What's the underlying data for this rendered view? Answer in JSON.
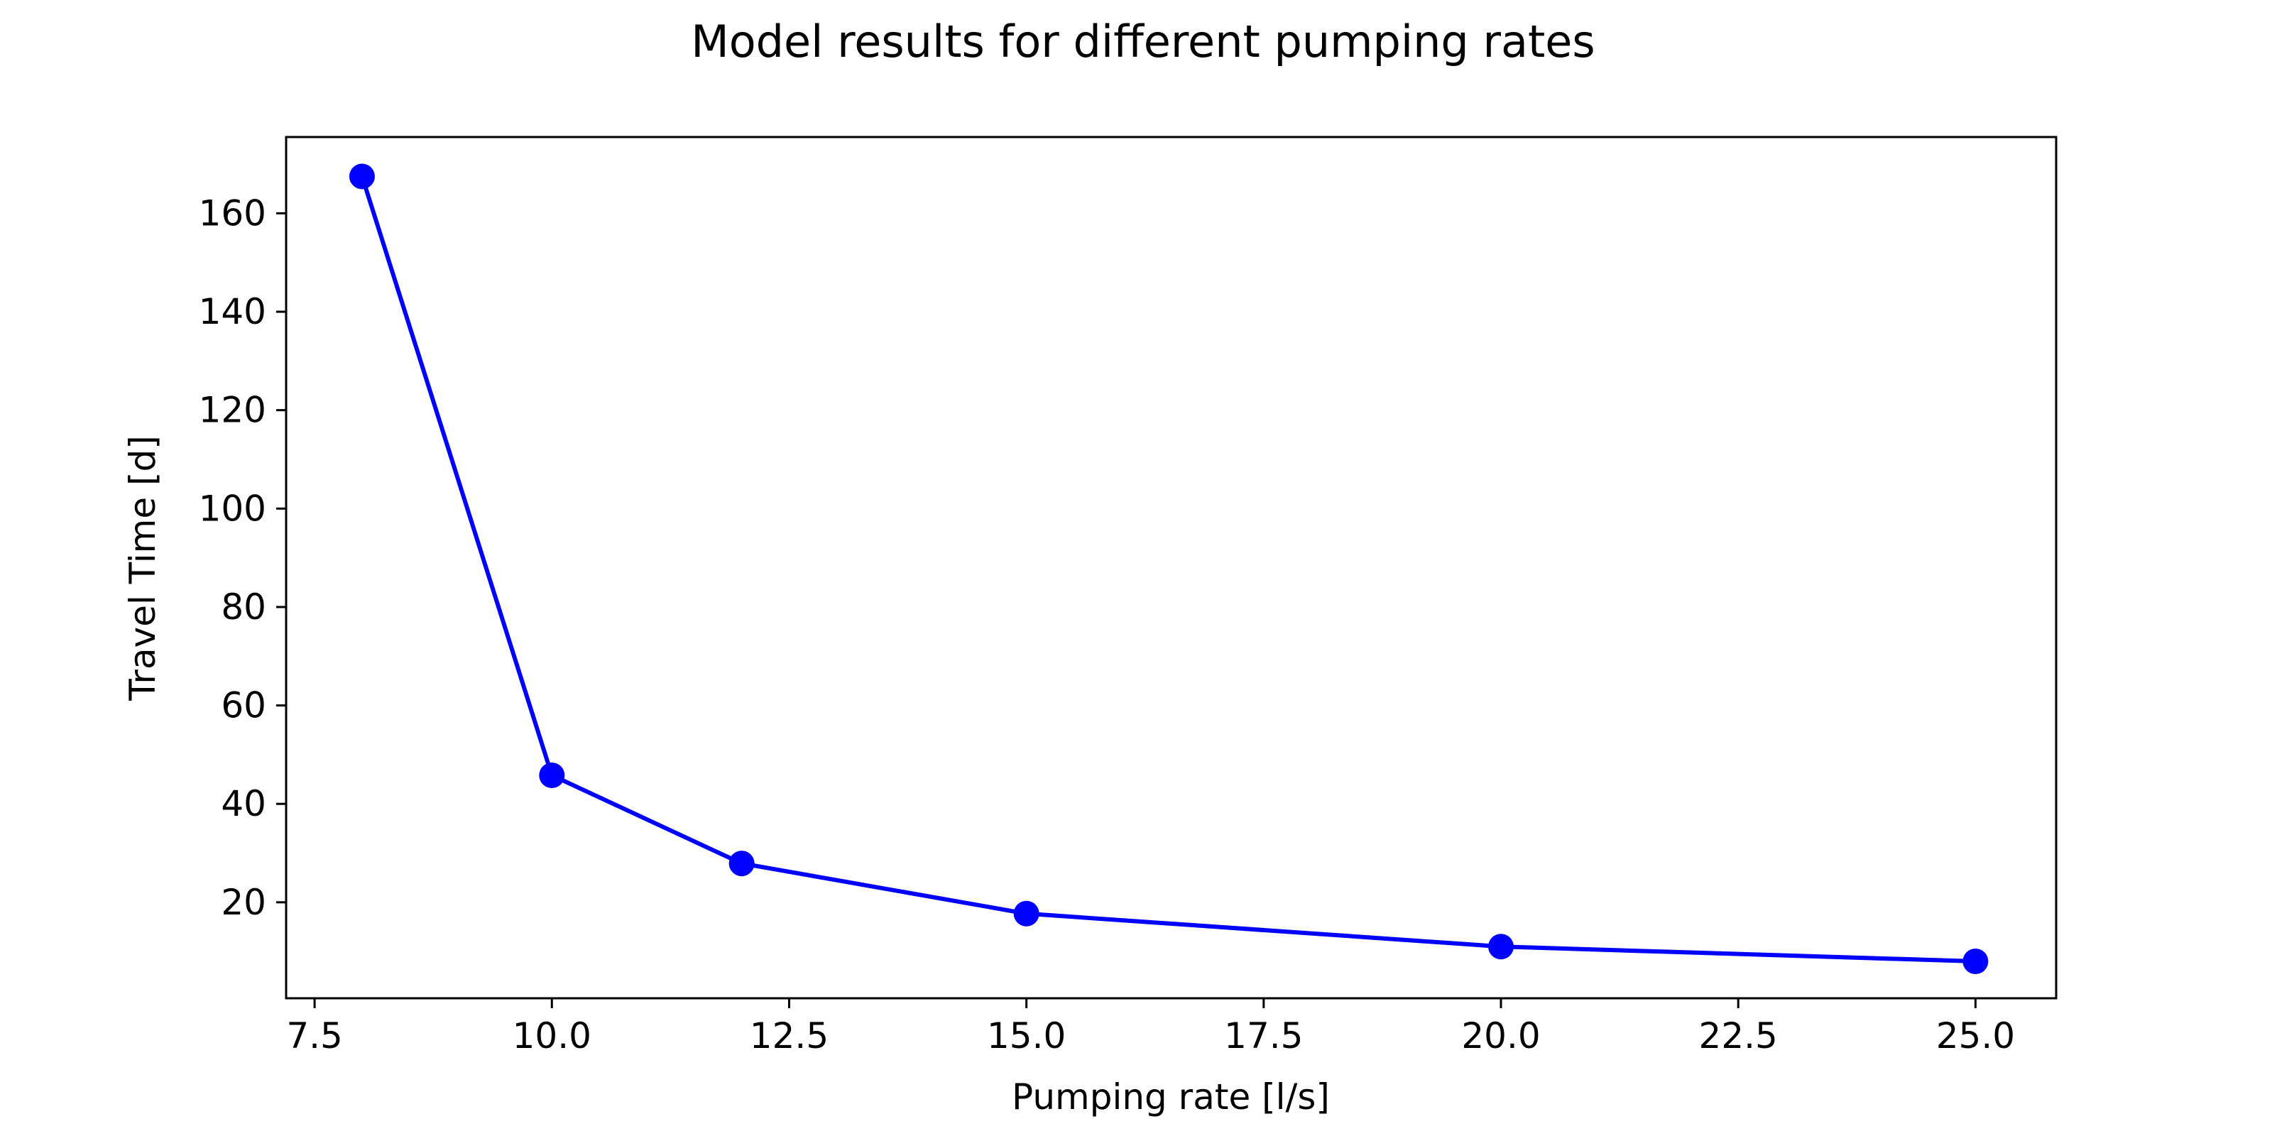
{
  "chart_data": {
    "type": "line",
    "title": "Model results for different pumping rates",
    "xlabel": "Pumping rate [l/s]",
    "ylabel": "Travel Time [d]",
    "xlim": [
      7.2,
      25.85
    ],
    "ylim": [
      0.5,
      175.5
    ],
    "xticks": [
      7.5,
      10.0,
      12.5,
      15.0,
      17.5,
      20.0,
      22.5,
      25.0
    ],
    "xtick_labels": [
      "7.5",
      "10.0",
      "12.5",
      "15.0",
      "17.5",
      "20.0",
      "22.5",
      "25.0"
    ],
    "yticks": [
      20,
      40,
      60,
      80,
      100,
      120,
      140,
      160
    ],
    "ytick_labels": [
      "20",
      "40",
      "60",
      "80",
      "100",
      "120",
      "140",
      "160"
    ],
    "grid": false,
    "series": [
      {
        "color": "#0000ff",
        "marker": "circle",
        "x": [
          8,
          10,
          12,
          15,
          20,
          25
        ],
        "y": [
          167.5,
          45.8,
          27.9,
          17.7,
          11.0,
          8.0
        ]
      }
    ]
  }
}
